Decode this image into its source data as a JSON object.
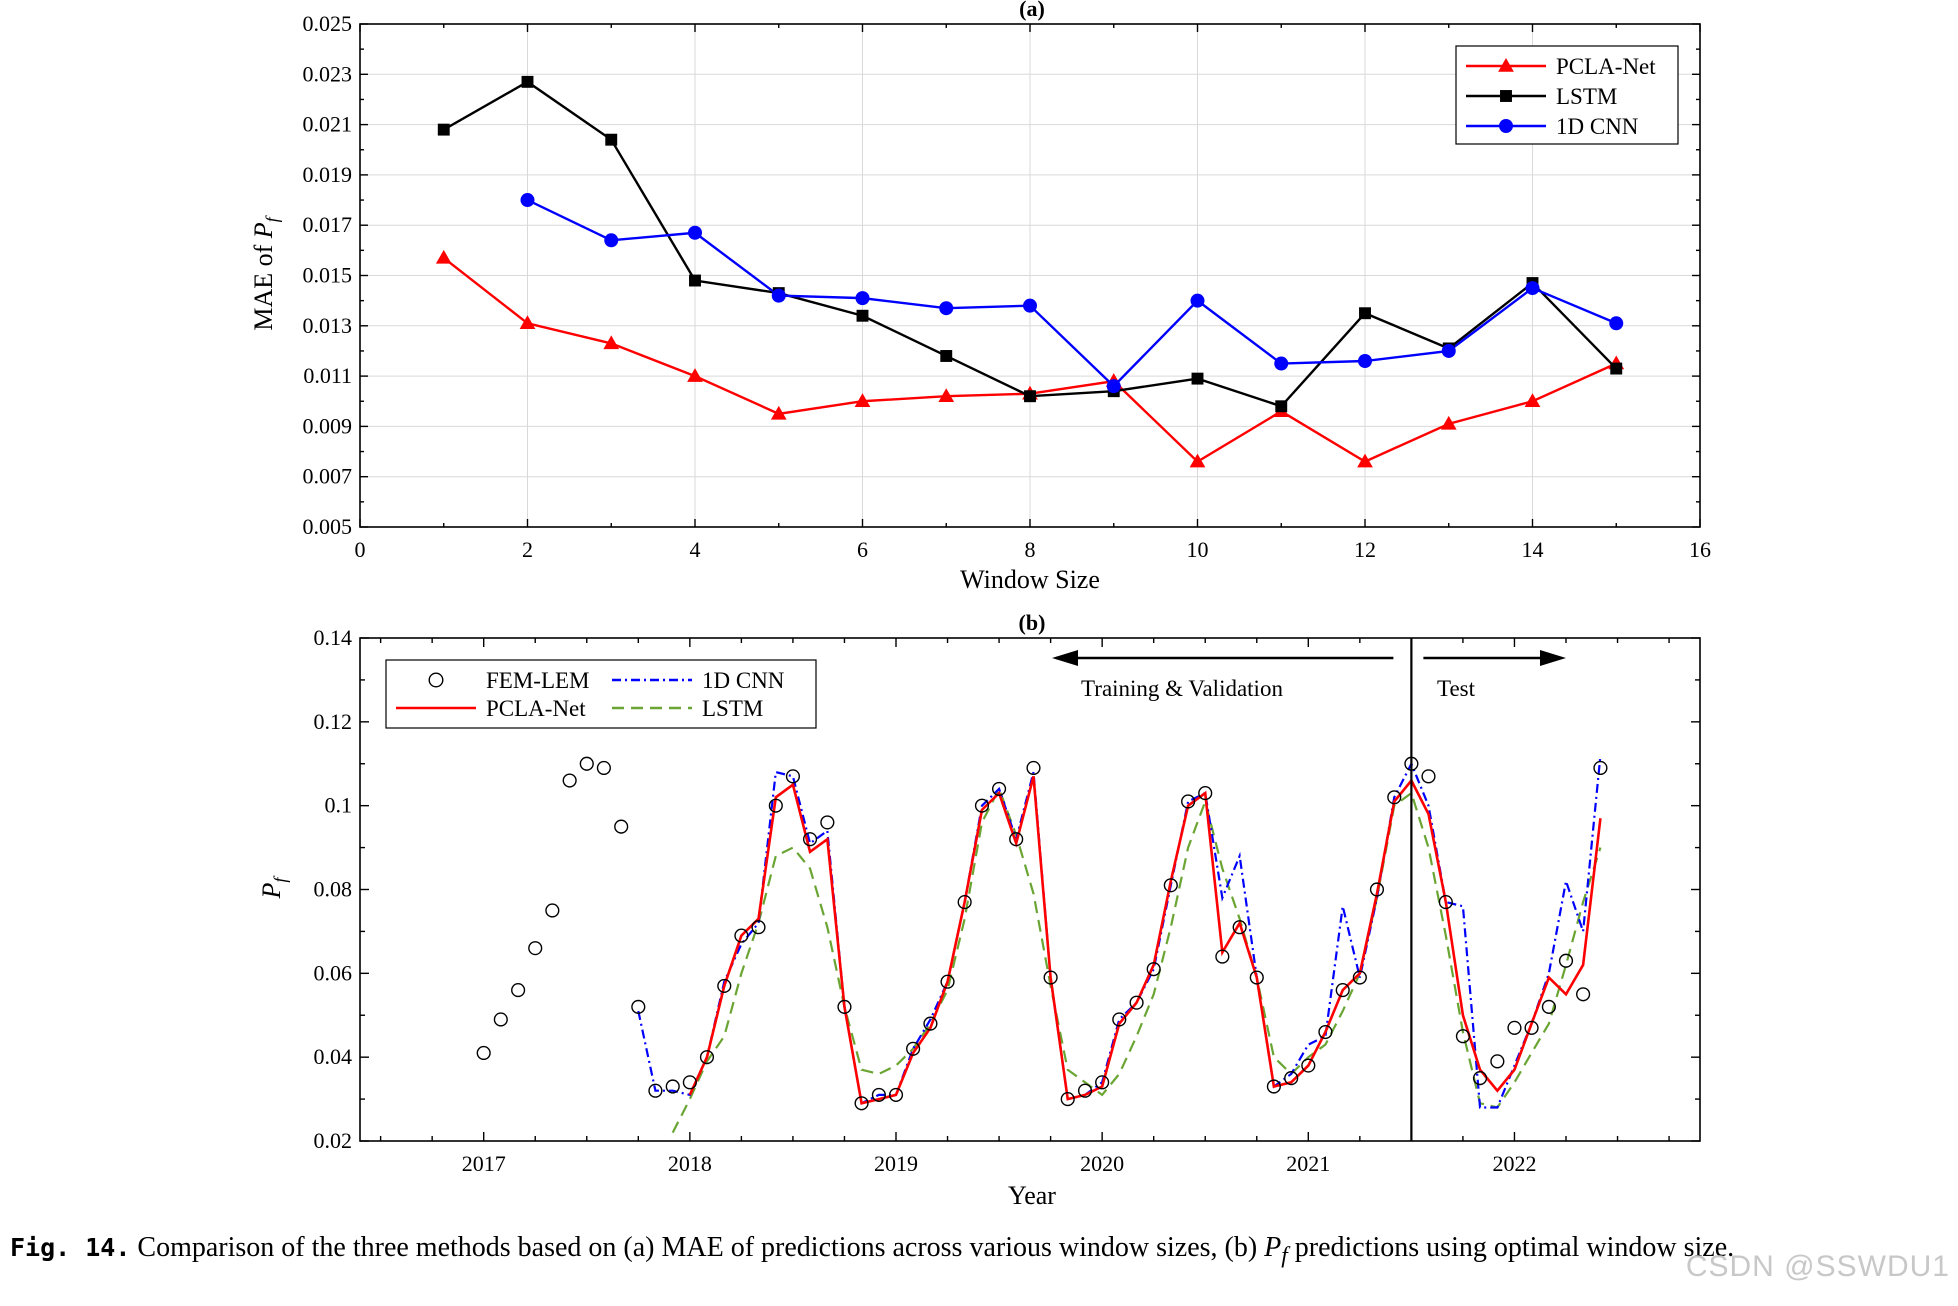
{
  "chart_data": [
    {
      "type": "line",
      "panel": "(a)",
      "title": "(a)",
      "xlabel": "Window Size",
      "ylabel": "MAE of P_f",
      "xlim": [
        0,
        16
      ],
      "ylim": [
        0.005,
        0.025
      ],
      "xticks": [
        0,
        2,
        4,
        6,
        8,
        10,
        12,
        14,
        16
      ],
      "yticks": [
        "0.005",
        "0.007",
        "0.009",
        "0.011",
        "0.013",
        "0.015",
        "0.017",
        "0.019",
        "0.021",
        "0.023",
        "0.025"
      ],
      "grid": true,
      "legend_position": "top-right",
      "series": [
        {
          "name": "PCLA-Net",
          "color": "#ff0000",
          "marker": "triangle",
          "x": [
            1,
            2,
            3,
            4,
            5,
            6,
            7,
            8,
            9,
            10,
            11,
            12,
            13,
            14,
            15
          ],
          "y": [
            0.0157,
            0.0131,
            0.0123,
            0.011,
            0.0095,
            0.01,
            0.0102,
            0.0103,
            0.0108,
            0.0076,
            0.0096,
            0.0076,
            0.0091,
            0.01,
            0.0115
          ]
        },
        {
          "name": "LSTM",
          "color": "#000000",
          "marker": "square",
          "x": [
            1,
            2,
            3,
            4,
            5,
            6,
            7,
            8,
            9,
            10,
            11,
            12,
            13,
            14,
            15
          ],
          "y": [
            0.0208,
            0.0227,
            0.0204,
            0.0148,
            0.0143,
            0.0134,
            0.0118,
            0.0102,
            0.0104,
            0.0109,
            0.0098,
            0.0135,
            0.0121,
            0.0147,
            0.0113
          ]
        },
        {
          "name": "1D CNN",
          "color": "#0000ff",
          "marker": "circle",
          "x": [
            2,
            3,
            4,
            5,
            6,
            7,
            8,
            9,
            10,
            11,
            12,
            13,
            14,
            15
          ],
          "y": [
            0.018,
            0.0164,
            0.0167,
            0.0142,
            0.0141,
            0.0137,
            0.0138,
            0.0106,
            0.014,
            0.0115,
            0.0116,
            0.012,
            0.0145,
            0.0131
          ]
        }
      ]
    },
    {
      "type": "line",
      "panel": "(b)",
      "title": "(b)",
      "xlabel": "Year",
      "ylabel": "P_f",
      "xlim": [
        2016.4,
        2022.9
      ],
      "ylim": [
        0.02,
        0.14
      ],
      "xticks": [
        2017,
        2018,
        2019,
        2020,
        2021,
        2022
      ],
      "yticks": [
        "0.02",
        "0.04",
        "0.06",
        "0.08",
        "0.1",
        "0.12",
        "0.14"
      ],
      "grid": false,
      "legend_position": "top-left",
      "split_year": 2021.5,
      "annotations": {
        "left": "Training & Validation",
        "right": "Test"
      },
      "series": [
        {
          "name": "FEM-LEM",
          "style": "open-circle",
          "color": "#000000",
          "x": [
            2017.0,
            2017.083,
            2017.167,
            2017.25,
            2017.333,
            2017.417,
            2017.5,
            2017.583,
            2017.667,
            2017.75,
            2017.833,
            2017.917,
            2018.0,
            2018.083,
            2018.167,
            2018.25,
            2018.333,
            2018.417,
            2018.5,
            2018.583,
            2018.667,
            2018.75,
            2018.833,
            2018.917,
            2019.0,
            2019.083,
            2019.167,
            2019.25,
            2019.333,
            2019.417,
            2019.5,
            2019.583,
            2019.667,
            2019.75,
            2019.833,
            2019.917,
            2020.0,
            2020.083,
            2020.167,
            2020.25,
            2020.333,
            2020.417,
            2020.5,
            2020.583,
            2020.667,
            2020.75,
            2020.833,
            2020.917,
            2021.0,
            2021.083,
            2021.167,
            2021.25,
            2021.333,
            2021.417,
            2021.5,
            2021.583,
            2021.667,
            2021.75,
            2021.833,
            2021.917,
            2022.0,
            2022.083,
            2022.167,
            2022.25,
            2022.333,
            2022.417
          ],
          "y": [
            0.041,
            0.049,
            0.056,
            0.066,
            0.075,
            0.106,
            0.11,
            0.109,
            0.095,
            0.052,
            0.032,
            0.033,
            0.034,
            0.04,
            0.057,
            0.069,
            0.071,
            0.1,
            0.107,
            0.092,
            0.096,
            0.052,
            0.029,
            0.031,
            0.031,
            0.042,
            0.048,
            0.058,
            0.077,
            0.1,
            0.104,
            0.092,
            0.109,
            0.059,
            0.03,
            0.032,
            0.034,
            0.049,
            0.053,
            0.061,
            0.081,
            0.101,
            0.103,
            0.064,
            0.071,
            0.059,
            0.033,
            0.035,
            0.038,
            0.046,
            0.056,
            0.059,
            0.08,
            0.102,
            0.11,
            0.107,
            0.077,
            0.045,
            0.035,
            0.039,
            0.047,
            0.047,
            0.052,
            0.063,
            0.055,
            0.109
          ]
        },
        {
          "name": "1D CNN",
          "style": "dash-dot",
          "color": "#0000ff",
          "x": [
            2017.75,
            2017.833,
            2017.917,
            2018.0,
            2018.083,
            2018.167,
            2018.25,
            2018.333,
            2018.417,
            2018.5,
            2018.583,
            2018.667,
            2018.75,
            2018.833,
            2018.917,
            2019.0,
            2019.083,
            2019.167,
            2019.25,
            2019.333,
            2019.417,
            2019.5,
            2019.583,
            2019.667,
            2019.75,
            2019.833,
            2019.917,
            2020.0,
            2020.083,
            2020.167,
            2020.25,
            2020.333,
            2020.417,
            2020.5,
            2020.583,
            2020.667,
            2020.75,
            2020.833,
            2020.917,
            2021.0,
            2021.083,
            2021.167,
            2021.25,
            2021.333,
            2021.417,
            2021.5,
            2021.583,
            2021.667,
            2021.75,
            2021.833,
            2021.917,
            2022.0,
            2022.083,
            2022.167,
            2022.25,
            2022.333,
            2022.417
          ],
          "y": [
            0.051,
            0.032,
            0.032,
            0.031,
            0.04,
            0.058,
            0.067,
            0.072,
            0.108,
            0.107,
            0.091,
            0.094,
            0.052,
            0.029,
            0.031,
            0.031,
            0.042,
            0.049,
            0.058,
            0.077,
            0.1,
            0.104,
            0.092,
            0.108,
            0.059,
            0.03,
            0.031,
            0.034,
            0.049,
            0.053,
            0.061,
            0.081,
            0.101,
            0.103,
            0.078,
            0.088,
            0.059,
            0.033,
            0.036,
            0.043,
            0.045,
            0.076,
            0.059,
            0.078,
            0.102,
            0.11,
            0.1,
            0.077,
            0.076,
            0.028,
            0.028,
            0.038,
            0.048,
            0.06,
            0.082,
            0.07,
            0.112
          ]
        },
        {
          "name": "PCLA-Net",
          "style": "solid",
          "color": "#ff0000",
          "x": [
            2018.0,
            2018.083,
            2018.167,
            2018.25,
            2018.333,
            2018.417,
            2018.5,
            2018.583,
            2018.667,
            2018.75,
            2018.833,
            2018.917,
            2019.0,
            2019.083,
            2019.167,
            2019.25,
            2019.333,
            2019.417,
            2019.5,
            2019.583,
            2019.667,
            2019.75,
            2019.833,
            2019.917,
            2020.0,
            2020.083,
            2020.167,
            2020.25,
            2020.333,
            2020.417,
            2020.5,
            2020.583,
            2020.667,
            2020.75,
            2020.833,
            2020.917,
            2021.0,
            2021.083,
            2021.167,
            2021.25,
            2021.333,
            2021.417,
            2021.5,
            2021.583,
            2021.667,
            2021.75,
            2021.833,
            2021.917,
            2022.0,
            2022.083,
            2022.167,
            2022.25,
            2022.333,
            2022.417
          ],
          "y": [
            0.031,
            0.04,
            0.057,
            0.069,
            0.073,
            0.102,
            0.105,
            0.089,
            0.092,
            0.052,
            0.029,
            0.03,
            0.031,
            0.041,
            0.047,
            0.058,
            0.077,
            0.099,
            0.103,
            0.091,
            0.107,
            0.059,
            0.03,
            0.031,
            0.033,
            0.048,
            0.053,
            0.062,
            0.082,
            0.1,
            0.103,
            0.065,
            0.072,
            0.059,
            0.033,
            0.034,
            0.038,
            0.046,
            0.056,
            0.06,
            0.079,
            0.101,
            0.106,
            0.098,
            0.077,
            0.05,
            0.037,
            0.032,
            0.037,
            0.048,
            0.059,
            0.055,
            0.062,
            0.097
          ]
        },
        {
          "name": "LSTM",
          "style": "dashed",
          "color": "#6aa533",
          "x": [
            2017.917,
            2018.0,
            2018.083,
            2018.167,
            2018.25,
            2018.333,
            2018.417,
            2018.5,
            2018.583,
            2018.667,
            2018.75,
            2018.833,
            2018.917,
            2019.0,
            2019.083,
            2019.167,
            2019.25,
            2019.333,
            2019.417,
            2019.5,
            2019.583,
            2019.667,
            2019.75,
            2019.833,
            2019.917,
            2020.0,
            2020.083,
            2020.167,
            2020.25,
            2020.333,
            2020.417,
            2020.5,
            2020.583,
            2020.667,
            2020.75,
            2020.833,
            2020.917,
            2021.0,
            2021.083,
            2021.167,
            2021.25,
            2021.333,
            2021.417,
            2021.5,
            2021.583,
            2021.667,
            2021.75,
            2021.833,
            2021.917,
            2022.0,
            2022.083,
            2022.167,
            2022.25,
            2022.333,
            2022.417
          ],
          "y": [
            0.022,
            0.03,
            0.039,
            0.045,
            0.06,
            0.072,
            0.088,
            0.09,
            0.085,
            0.071,
            0.052,
            0.037,
            0.036,
            0.038,
            0.042,
            0.048,
            0.056,
            0.073,
            0.096,
            0.104,
            0.093,
            0.079,
            0.057,
            0.037,
            0.034,
            0.031,
            0.036,
            0.045,
            0.055,
            0.071,
            0.09,
            0.101,
            0.085,
            0.073,
            0.059,
            0.04,
            0.036,
            0.04,
            0.043,
            0.051,
            0.06,
            0.078,
            0.1,
            0.103,
            0.09,
            0.069,
            0.046,
            0.029,
            0.028,
            0.034,
            0.041,
            0.048,
            0.062,
            0.077,
            0.09
          ]
        }
      ]
    }
  ],
  "caption": {
    "label": "Fig. 14.",
    "text": "Comparison of the three methods based on (a) MAE of predictions across various window sizes, (b)",
    "symbol": "P",
    "symbol_sub": "f",
    "text_after": "predictions using optimal window size."
  },
  "watermark": "CSDN @SSWDU1"
}
